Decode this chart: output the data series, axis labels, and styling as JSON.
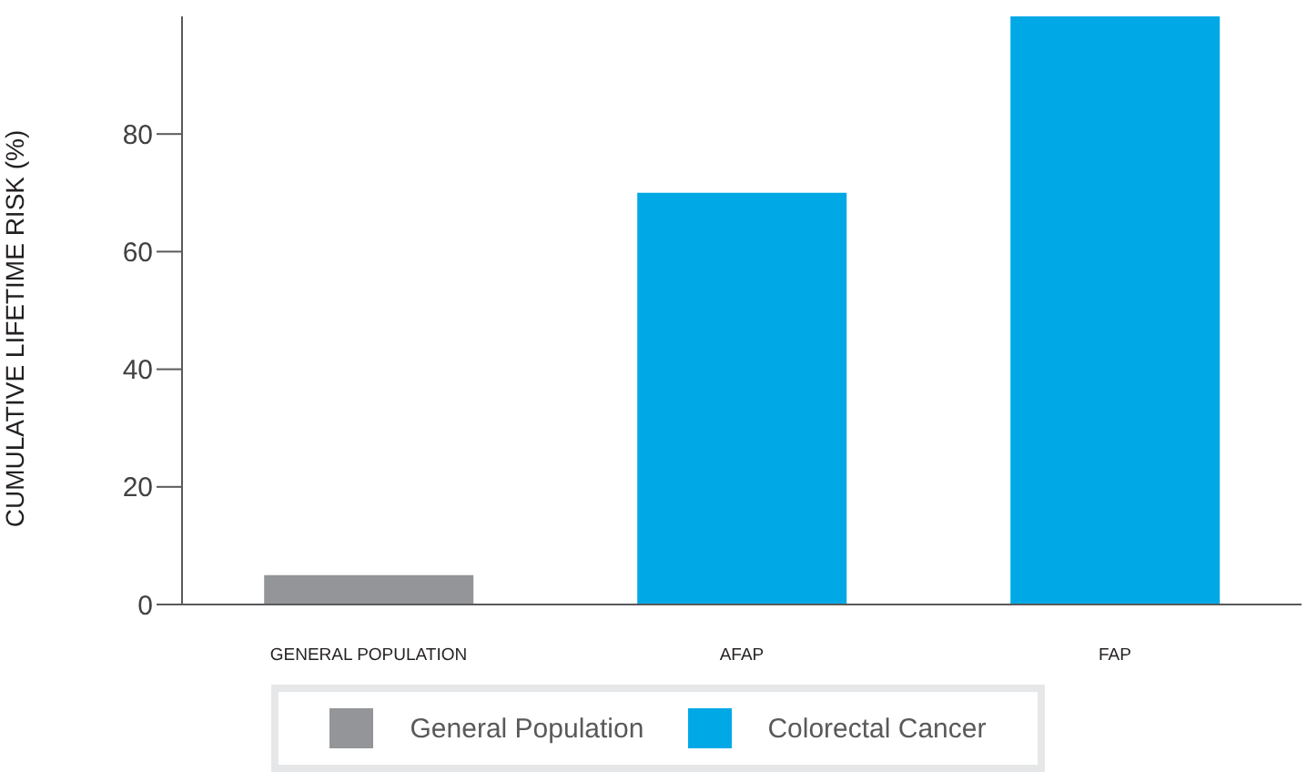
{
  "chart_data": {
    "type": "bar",
    "stacked": true,
    "ylabel": "CUMULATIVE LIFETIME RISK (%)",
    "categories": [
      "GENERAL POPULATION",
      "AFAP",
      "FAP"
    ],
    "series": [
      {
        "name": "General Population",
        "color": "#939598",
        "values": [
          5,
          null,
          null
        ]
      },
      {
        "name": "Colorectal Cancer",
        "color": "#00a9e6",
        "values": [
          null,
          70,
          100
        ]
      }
    ],
    "ylim": [
      0,
      100
    ],
    "yticks": [
      0,
      20,
      40,
      60,
      80
    ],
    "legend": "bottom"
  }
}
